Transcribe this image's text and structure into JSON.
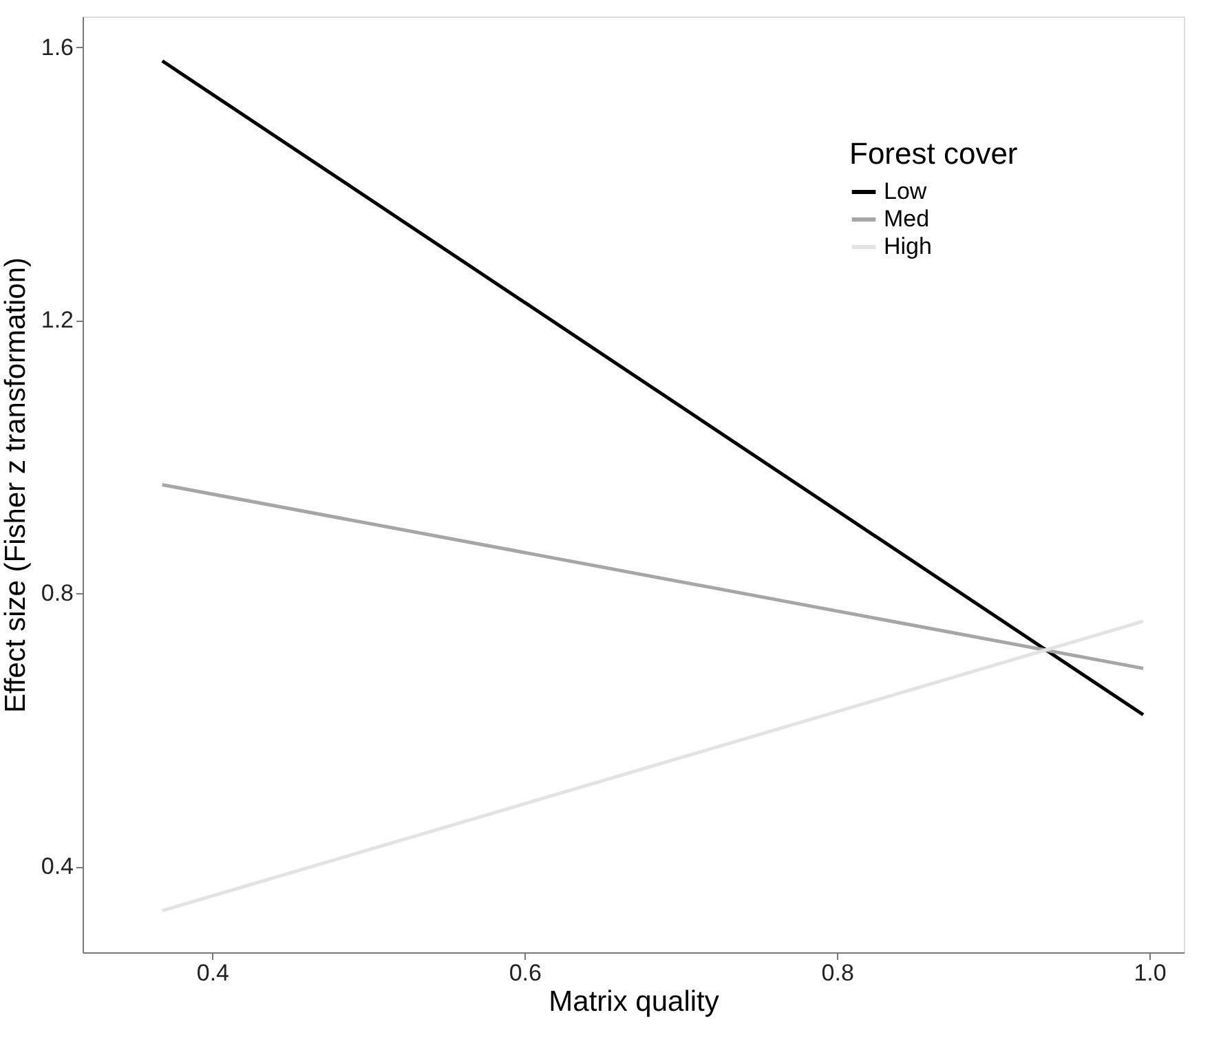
{
  "chart_data": {
    "type": "line",
    "xlabel": "Matrix quality",
    "ylabel": "Effect size (Fisher z transformation)",
    "legend_title": "Forest cover",
    "x": [
      0.368,
      0.996
    ],
    "series": [
      {
        "name": "Low",
        "color": "#000000",
        "values": [
          1.58,
          0.622
        ]
      },
      {
        "name": "Med",
        "color": "#a6a6a6",
        "values": [
          0.959,
          0.69
        ]
      },
      {
        "name": "High",
        "color": "#e3e3e3",
        "values": [
          0.335,
          0.759
        ]
      }
    ],
    "xlim": [
      0.317,
      1.022
    ],
    "ylim": [
      0.274,
      1.645
    ],
    "xticks": [
      {
        "value": 0.4,
        "label": "0.4"
      },
      {
        "value": 0.6,
        "label": "0.6"
      },
      {
        "value": 0.8,
        "label": "0.8"
      },
      {
        "value": 1.0,
        "label": "1.0"
      }
    ],
    "yticks": [
      {
        "value": 0.4,
        "label": "0.4"
      },
      {
        "value": 0.8,
        "label": "0.8"
      },
      {
        "value": 1.2,
        "label": "1.2"
      },
      {
        "value": 1.6,
        "label": "1.6"
      }
    ],
    "grid": false,
    "legend": "top right",
    "marker": "none",
    "line_style": "solid"
  }
}
